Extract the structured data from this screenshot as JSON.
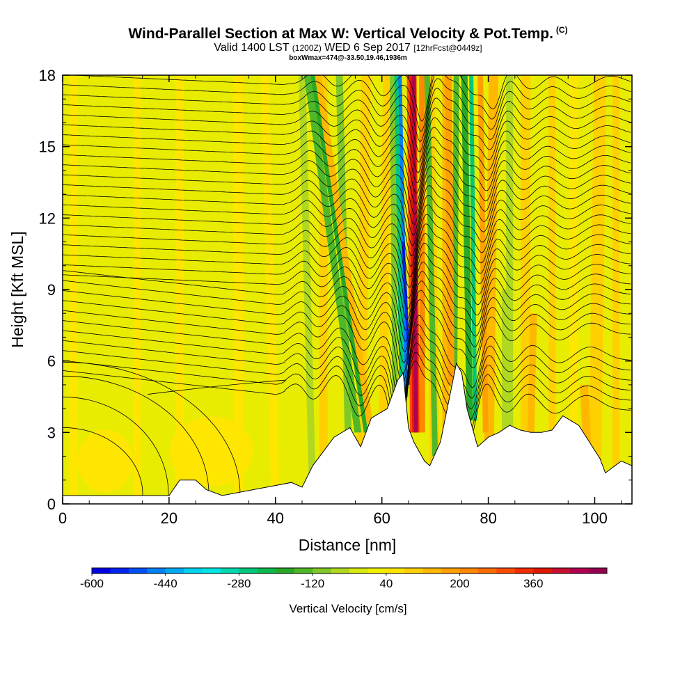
{
  "title": {
    "main": "Wind-Parallel Section at Max W: Vertical Velocity & Pot.Temp.",
    "copyright": "(C)",
    "valid_prefix": "Valid 1400 LST",
    "valid_utc": "(1200Z)",
    "valid_date": "WED 6 Sep 2017",
    "forecast": "[12hrFcst@0449z]",
    "box": "boxWmax=474@-33.50,19.46,1936m"
  },
  "chart_data": {
    "type": "heatmap",
    "xlabel": "Distance [nm]",
    "ylabel": "Height [Kft MSL]",
    "xlim": [
      0,
      107
    ],
    "ylim": [
      0,
      18
    ],
    "xticks": [
      0,
      20,
      40,
      60,
      80,
      100
    ],
    "yticks": [
      0,
      3,
      6,
      9,
      12,
      15,
      18
    ],
    "xtick_labels": [
      "0",
      "20",
      "40",
      "60",
      "80",
      "100"
    ],
    "ytick_labels": [
      "0",
      "3",
      "6",
      "9",
      "12",
      "15",
      "18"
    ],
    "terrain": [
      [
        0,
        0.35
      ],
      [
        20,
        0.35
      ],
      [
        22,
        1.0
      ],
      [
        25,
        1.0
      ],
      [
        27,
        0.6
      ],
      [
        30,
        0.35
      ],
      [
        43,
        0.9
      ],
      [
        45,
        0.7
      ],
      [
        47,
        1.6
      ],
      [
        51,
        2.8
      ],
      [
        54,
        3.2
      ],
      [
        56,
        2.4
      ],
      [
        58,
        3.6
      ],
      [
        61,
        4.0
      ],
      [
        63,
        5.2
      ],
      [
        64,
        5.5
      ],
      [
        65,
        3.2
      ],
      [
        66,
        2.6
      ],
      [
        68,
        1.8
      ],
      [
        69,
        1.6
      ],
      [
        71,
        2.6
      ],
      [
        73,
        4.8
      ],
      [
        74,
        5.9
      ],
      [
        75,
        5.5
      ],
      [
        76,
        4.0
      ],
      [
        78,
        2.4
      ],
      [
        80,
        2.8
      ],
      [
        82,
        3.0
      ],
      [
        84,
        3.3
      ],
      [
        86,
        3.1
      ],
      [
        88,
        3.0
      ],
      [
        90,
        3.0
      ],
      [
        92,
        3.1
      ],
      [
        94,
        3.7
      ],
      [
        97,
        3.3
      ],
      [
        99,
        2.6
      ],
      [
        101,
        1.9
      ],
      [
        102,
        1.3
      ],
      [
        105,
        1.8
      ],
      [
        107,
        1.6
      ]
    ],
    "updraft_bands": [
      {
        "x_bottom": 65.5,
        "x_top": 66.5,
        "w": 474
      },
      {
        "x_bottom": 74.5,
        "x_top": 78.5,
        "w": 150
      },
      {
        "x_bottom": 99.0,
        "x_top": 102.0,
        "w": 80
      }
    ],
    "downdraft_bands": [
      {
        "x_bottom": 64.0,
        "x_top": 64.8,
        "w": -520
      },
      {
        "x_bottom": 75.5,
        "x_top": 77.5,
        "w": -250
      },
      {
        "x_bottom": 55.5,
        "x_top": 46.0,
        "w": -150
      }
    ],
    "colorbar": {
      "title": "Vertical Velocity [cm/s]",
      "min": -600,
      "max": 520,
      "step": 40,
      "tick_values": [
        -600,
        -440,
        -280,
        -120,
        40,
        200,
        360
      ],
      "tick_labels": [
        "-600",
        "-440",
        "-280",
        "-120",
        "40",
        "200",
        "360"
      ],
      "colors": [
        "#0000e6",
        "#0022f0",
        "#0050f5",
        "#0080f5",
        "#00aaf5",
        "#00d2f0",
        "#00e6e6",
        "#00d9b0",
        "#00c87a",
        "#10b850",
        "#28a828",
        "#50b828",
        "#80c828",
        "#b0d820",
        "#d8e810",
        "#f0f000",
        "#ffe600",
        "#ffd000",
        "#ffb800",
        "#ffa000",
        "#ff8800",
        "#ff6c00",
        "#ff4c00",
        "#f02c00",
        "#e01800",
        "#c81030",
        "#b00050",
        "#960050"
      ]
    }
  }
}
